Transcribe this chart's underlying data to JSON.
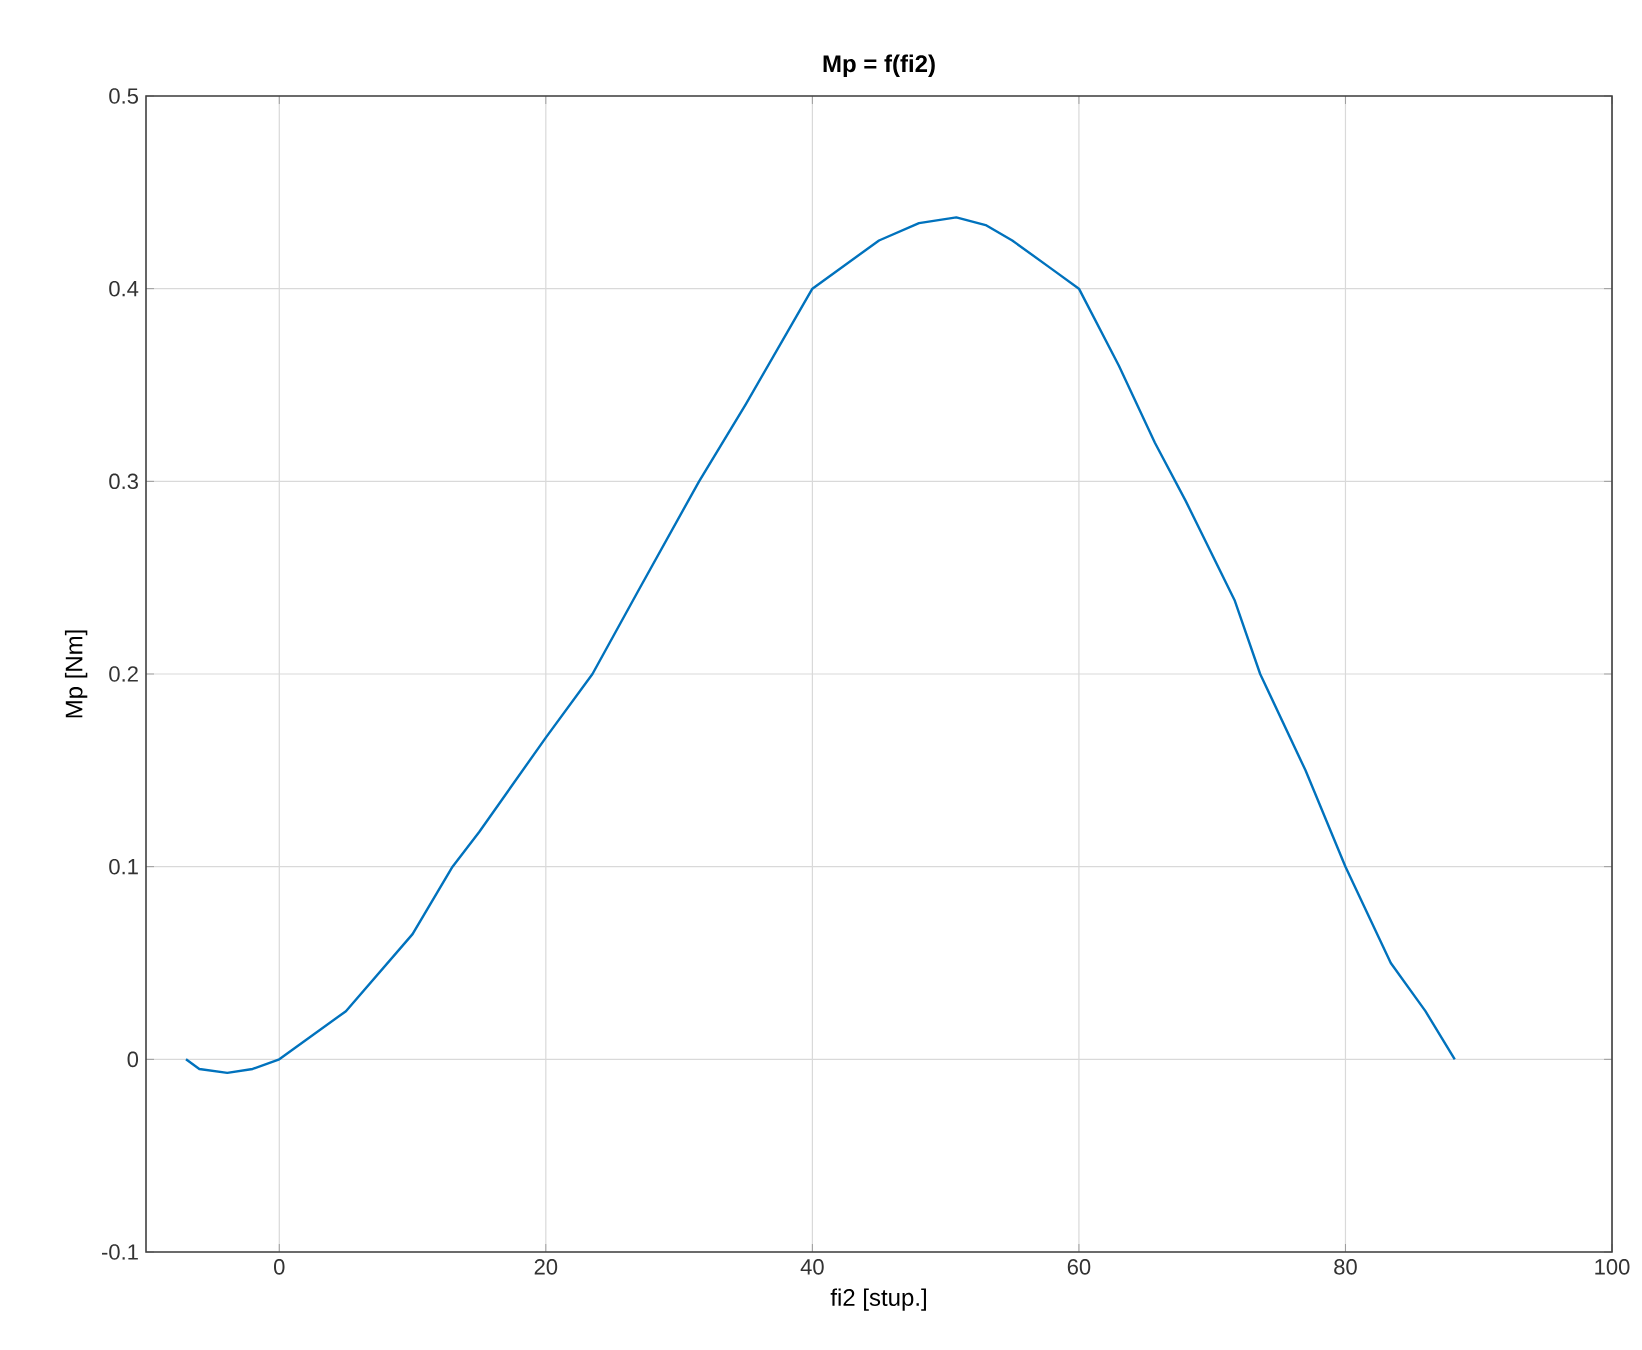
{
  "chart_data": {
    "type": "line",
    "title": "Mp = f(fi2)",
    "xlabel": "fi2 [stup.]",
    "ylabel": "Mp [Nm]",
    "xlim": [
      -10,
      100
    ],
    "ylim": [
      -0.1,
      0.5
    ],
    "xticks": [
      0,
      20,
      40,
      60,
      80,
      100
    ],
    "yticks": [
      -0.1,
      0,
      0.1,
      0.2,
      0.3,
      0.4,
      0.5
    ],
    "grid": true,
    "series": [
      {
        "color": "#0072bd",
        "x": [
          -7,
          -6,
          -3.9,
          -2,
          0,
          5,
          10,
          13,
          15,
          20,
          23.5,
          27,
          31.5,
          35,
          40,
          45,
          48,
          50.8,
          53,
          55,
          58,
          60,
          63,
          65.7,
          68,
          71.7,
          73.6,
          77,
          80,
          83.4,
          86,
          88.2
        ],
        "values": [
          0,
          -0.005,
          -0.007,
          -0.005,
          0,
          0.025,
          0.065,
          0.1,
          0.118,
          0.167,
          0.2,
          0.244,
          0.3,
          0.34,
          0.4,
          0.425,
          0.434,
          0.437,
          0.433,
          0.425,
          0.41,
          0.4,
          0.36,
          0.32,
          0.29,
          0.238,
          0.2,
          0.15,
          0.1,
          0.05,
          0.025,
          0
        ]
      }
    ]
  }
}
